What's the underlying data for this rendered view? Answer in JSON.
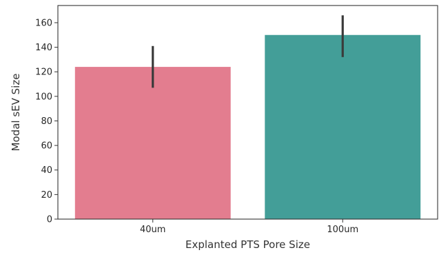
{
  "chart_data": {
    "type": "bar",
    "categories": [
      "40um",
      "100um"
    ],
    "values": [
      124,
      150
    ],
    "error_bars": [
      {
        "low": 107,
        "high": 141
      },
      {
        "low": 132,
        "high": 166
      }
    ],
    "colors": [
      "#e37d8f",
      "#439e98"
    ],
    "xlabel": "Explanted PTS Pore Size",
    "ylabel": "Modal sEV Size",
    "ylim": [
      0,
      174
    ],
    "yticks": [
      0,
      20,
      40,
      60,
      80,
      100,
      120,
      140,
      160
    ],
    "grid": false,
    "legend": "none"
  }
}
